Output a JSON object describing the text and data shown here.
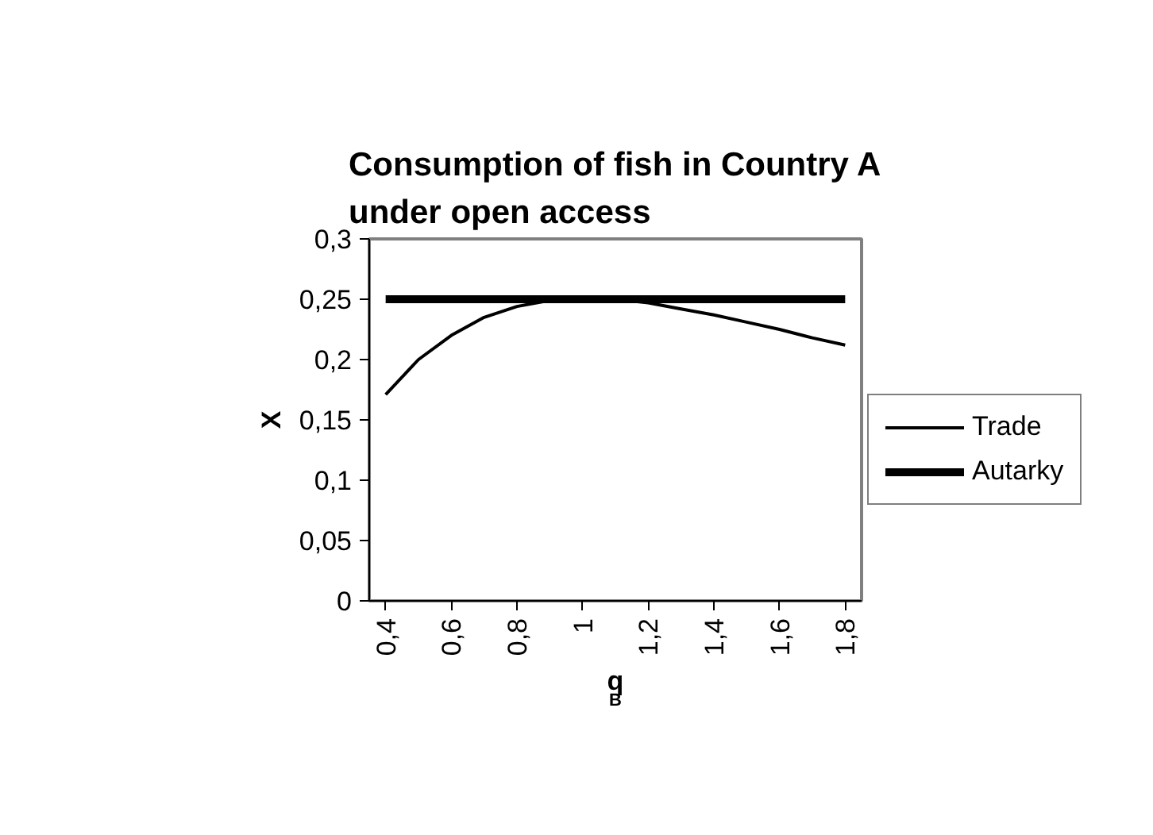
{
  "chart_data": {
    "type": "line",
    "title": "Consumption of fish in Country A\nunder open access",
    "xlabel": "q$_{B}$",
    "ylabel": "X",
    "x": [
      0.4,
      0.5,
      0.6,
      0.7,
      0.8,
      0.9,
      1.0,
      1.1,
      1.2,
      1.3,
      1.4,
      1.5,
      1.6,
      1.7,
      1.8
    ],
    "series": [
      {
        "name": "Trade",
        "color": "#000000",
        "values": [
          0.171,
          0.2,
          0.22,
          0.235,
          0.244,
          0.249,
          0.25,
          0.25,
          0.247,
          0.242,
          0.237,
          0.231,
          0.225,
          0.218,
          0.212
        ]
      },
      {
        "name": "Autarky",
        "color": "#000000",
        "values": [
          0.25,
          0.25,
          0.25,
          0.25,
          0.25,
          0.25,
          0.25,
          0.25,
          0.25,
          0.25,
          0.25,
          0.25,
          0.25,
          0.25,
          0.25
        ]
      }
    ],
    "xlim": [
      0.35,
      1.85
    ],
    "xticks": [
      {
        "value": 0.4,
        "label": "0,4"
      },
      {
        "value": 0.6,
        "label": "0,6"
      },
      {
        "value": 0.8,
        "label": "0,8"
      },
      {
        "value": 1.0,
        "label": "1"
      },
      {
        "value": 1.2,
        "label": "1,2"
      },
      {
        "value": 1.4,
        "label": "1,4"
      },
      {
        "value": 1.6,
        "label": "1,6"
      },
      {
        "value": 1.8,
        "label": "1,8"
      }
    ],
    "ylim": [
      0,
      0.3
    ],
    "yticks": [
      {
        "value": 0,
        "label": "0"
      },
      {
        "value": 0.05,
        "label": "0,05"
      },
      {
        "value": 0.1,
        "label": "0,1"
      },
      {
        "value": 0.15,
        "label": "0,15"
      },
      {
        "value": 0.2,
        "label": "0,2"
      },
      {
        "value": 0.25,
        "label": "0,25"
      },
      {
        "value": 0.3,
        "label": "0,3"
      }
    ],
    "grid": false,
    "legend": "right",
    "marker": "none",
    "line_style": "solid"
  }
}
